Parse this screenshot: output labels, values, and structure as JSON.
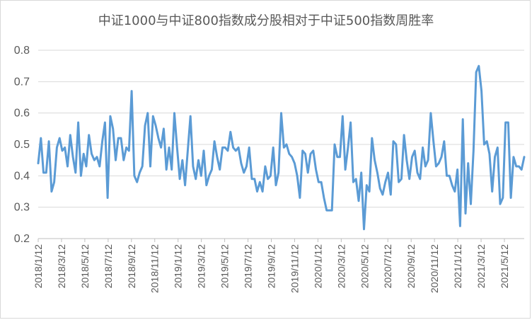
{
  "chart_data": {
    "type": "line",
    "title": "中证1000与中证800指数成分股相对于中证500指数周胜率",
    "xlabel": "",
    "ylabel": "",
    "ylim": [
      0.2,
      0.8
    ],
    "yticks": [
      "0.2",
      "0.3",
      "0.4",
      "0.5",
      "0.6",
      "0.7",
      "0.8"
    ],
    "grid": "horizontal",
    "legend": "none",
    "x_tick_labels": [
      "2018/1/12",
      "2018/3/12",
      "2018/5/12",
      "2018/7/12",
      "2018/9/12",
      "2018/11/12",
      "2019/1/12",
      "2019/3/12",
      "2019/5/12",
      "2019/7/12",
      "2019/9/12",
      "2019/11/12",
      "2020/1/12",
      "2020/3/12",
      "2020/5/12",
      "2020/7/12",
      "2020/9/12",
      "2020/11/12",
      "2021/1/12",
      "2021/3/12",
      "2021/5/12"
    ],
    "series": [
      {
        "color": "#5b9bd5",
        "values": [
          0.44,
          0.52,
          0.41,
          0.41,
          0.51,
          0.35,
          0.38,
          0.49,
          0.52,
          0.48,
          0.49,
          0.43,
          0.53,
          0.46,
          0.41,
          0.57,
          0.4,
          0.47,
          0.43,
          0.53,
          0.47,
          0.45,
          0.46,
          0.43,
          0.51,
          0.57,
          0.33,
          0.59,
          0.55,
          0.45,
          0.52,
          0.52,
          0.45,
          0.49,
          0.48,
          0.67,
          0.4,
          0.38,
          0.41,
          0.43,
          0.56,
          0.6,
          0.43,
          0.59,
          0.56,
          0.52,
          0.49,
          0.55,
          0.42,
          0.49,
          0.42,
          0.6,
          0.49,
          0.39,
          0.45,
          0.37,
          0.48,
          0.59,
          0.43,
          0.39,
          0.45,
          0.4,
          0.48,
          0.37,
          0.4,
          0.42,
          0.51,
          0.46,
          0.42,
          0.49,
          0.49,
          0.48,
          0.54,
          0.49,
          0.48,
          0.49,
          0.44,
          0.41,
          0.43,
          0.49,
          0.39,
          0.39,
          0.35,
          0.38,
          0.35,
          0.43,
          0.39,
          0.4,
          0.49,
          0.37,
          0.41,
          0.6,
          0.49,
          0.5,
          0.47,
          0.46,
          0.44,
          0.4,
          0.33,
          0.48,
          0.47,
          0.41,
          0.47,
          0.48,
          0.42,
          0.38,
          0.38,
          0.33,
          0.29,
          0.29,
          0.29,
          0.5,
          0.46,
          0.46,
          0.59,
          0.42,
          0.49,
          0.57,
          0.38,
          0.39,
          0.32,
          0.41,
          0.23,
          0.37,
          0.35,
          0.52,
          0.45,
          0.41,
          0.36,
          0.34,
          0.38,
          0.41,
          0.34,
          0.51,
          0.5,
          0.38,
          0.39,
          0.53,
          0.45,
          0.39,
          0.46,
          0.48,
          0.41,
          0.39,
          0.49,
          0.43,
          0.45,
          0.6,
          0.51,
          0.43,
          0.44,
          0.46,
          0.51,
          0.4,
          0.4,
          0.37,
          0.35,
          0.42,
          0.24,
          0.58,
          0.28,
          0.44,
          0.31,
          0.48,
          0.73,
          0.75,
          0.67,
          0.5,
          0.51,
          0.47,
          0.35,
          0.46,
          0.49,
          0.31,
          0.33,
          0.57,
          0.57,
          0.33,
          0.46,
          0.43,
          0.43,
          0.42,
          0.46
        ]
      }
    ]
  }
}
